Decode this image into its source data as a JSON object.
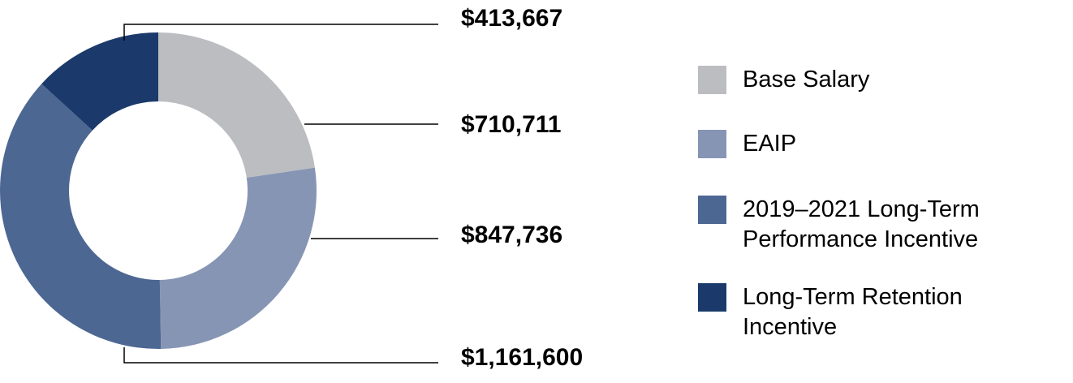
{
  "chart_data": {
    "type": "donut",
    "categories": [
      "Base Salary",
      "EAIP",
      "2019–2021 Long-Term Performance Incentive",
      "Long-Term Retention Incentive"
    ],
    "values": [
      710711,
      847736,
      1161600,
      413667
    ],
    "value_labels": [
      "$710,711",
      "$847,736",
      "$1,161,600",
      "$413,667"
    ],
    "colors": [
      "#bcbdc1",
      "#8795b5",
      "#4d6793",
      "#1b3a6b"
    ]
  }
}
